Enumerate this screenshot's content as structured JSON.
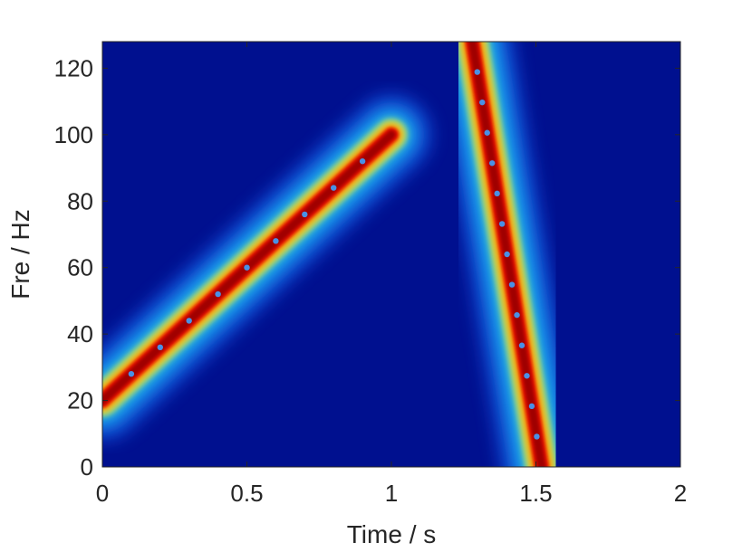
{
  "chart_data": {
    "type": "heatmap",
    "title": "",
    "xlabel": "Time / s",
    "ylabel": "Fre / Hz",
    "xlim": [
      0,
      2
    ],
    "ylim": [
      0,
      128
    ],
    "xticks": [
      0,
      0.5,
      1,
      1.5,
      2
    ],
    "xtick_labels": [
      "0",
      "0.5",
      "1",
      "1.5",
      "2"
    ],
    "yticks": [
      0,
      20,
      40,
      60,
      80,
      100,
      120
    ],
    "ytick_labels": [
      "0",
      "20",
      "40",
      "60",
      "80",
      "100",
      "120"
    ],
    "colormap": "jet",
    "background_color": "#00108f",
    "grid": false,
    "components": [
      {
        "t_start": 0.0,
        "t_end": 1.0,
        "f_start": 20,
        "f_end": 100
      },
      {
        "t_start": 1.28,
        "t_end": 1.52,
        "f_start": 128,
        "f_end": 0
      }
    ]
  }
}
